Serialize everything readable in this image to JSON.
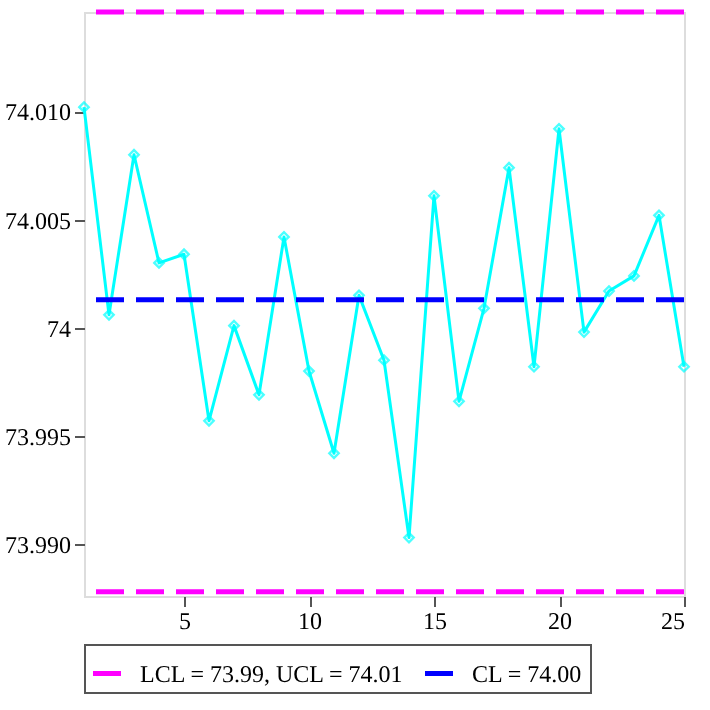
{
  "chart_data": {
    "type": "line",
    "x": [
      1,
      2,
      3,
      4,
      5,
      6,
      7,
      8,
      9,
      10,
      11,
      12,
      13,
      14,
      15,
      16,
      17,
      18,
      19,
      20,
      21,
      22,
      23,
      24,
      25
    ],
    "series": [
      {
        "color": "#00ffff",
        "values": [
          74.0102,
          74.0006,
          74.008,
          74.003,
          74.0034,
          73.9957,
          74.0001,
          73.9969,
          74.0042,
          73.998,
          73.9942,
          74.0015,
          73.9985,
          73.9903,
          74.0061,
          73.9966,
          74.0009,
          74.0074,
          73.9982,
          74.0092,
          73.9998,
          74.0017,
          74.0024,
          74.0052,
          73.9982
        ]
      }
    ],
    "marker": "diamond",
    "line_style": "solid",
    "xlim": [
      1,
      25
    ],
    "xticks": [
      5,
      10,
      15,
      20,
      25
    ],
    "ylim": [
      73.9876,
      74.0146
    ],
    "yticks": [
      {
        "value": 73.99,
        "label": "73.990"
      },
      {
        "value": 73.995,
        "label": "73.995"
      },
      74,
      {
        "value": 74.005,
        "label": "74.005"
      },
      {
        "value": 74.01,
        "label": "74.010"
      }
    ],
    "ref_lines": [
      {
        "axis": "y",
        "value": 73.9878,
        "label": "LCL = 73.99, UCL = 74.01",
        "color": "#ff00ff",
        "line_style": "dashed"
      },
      {
        "axis": "y",
        "value": 74.0146,
        "color": "#ff00ff",
        "line_style": "dashed"
      },
      {
        "axis": "y",
        "value": 74.0013,
        "label": "CL = 74.00",
        "color": "#0000ff",
        "line_style": "dashed"
      }
    ],
    "grid": false,
    "legend": "bottom"
  }
}
